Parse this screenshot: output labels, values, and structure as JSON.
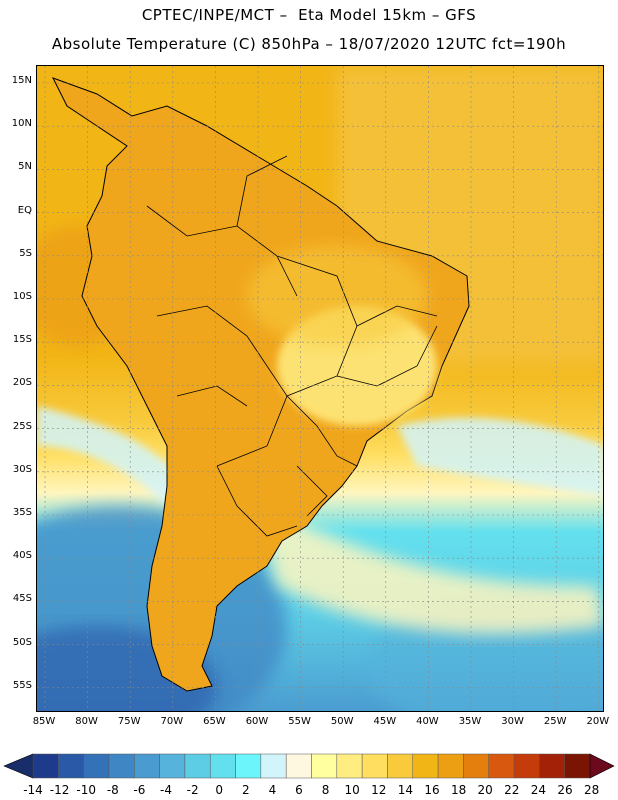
{
  "header": {
    "line1": "CPTEC/INPE/MCT –  Eta Model 15km – GFS",
    "line2": "Absolute Temperature (C) 850hPa – 18/07/2020 12UTC fct=190h"
  },
  "axes": {
    "lat_labels": [
      "15N",
      "10N",
      "5N",
      "EQ",
      "5S",
      "10S",
      "15S",
      "20S",
      "25S",
      "30S",
      "35S",
      "40S",
      "45S",
      "50S",
      "55S"
    ],
    "lon_labels": [
      "85W",
      "80W",
      "75W",
      "70W",
      "65W",
      "60W",
      "55W",
      "50W",
      "45W",
      "40W",
      "35W",
      "30W",
      "25W",
      "20W"
    ]
  },
  "colorbar": {
    "labels": [
      "-14",
      "-12",
      "-10",
      "-8",
      "-6",
      "-4",
      "-2",
      "0",
      "2",
      "4",
      "6",
      "8",
      "10",
      "12",
      "14",
      "16",
      "18",
      "20",
      "22",
      "24",
      "26",
      "28"
    ],
    "colors": [
      "#1e3a8a",
      "#2a59a8",
      "#3472b8",
      "#3f86c4",
      "#4a9cd0",
      "#55b3dc",
      "#5dcde6",
      "#63e0ee",
      "#6cf6fb",
      "#d2f4fb",
      "#fff8e1",
      "#ffff9f",
      "#ffed82",
      "#ffde60",
      "#f8ca3c",
      "#f2b516",
      "#ec9f12",
      "#e47f0e",
      "#d85810",
      "#c43c0a",
      "#a32106",
      "#7a1504"
    ],
    "min_arrow_color": "#1a2d6b",
    "max_arrow_color": "#6a0a1c"
  },
  "map": {
    "ocean_colors": {
      "tropics": "#f0a61c",
      "subtropics": "#f4c340",
      "mid": "#fff6bf",
      "cool": "#d2f4fb",
      "cold": "#63e0ee",
      "colder": "#4ab6d8",
      "coldest": "#3472b8"
    }
  }
}
